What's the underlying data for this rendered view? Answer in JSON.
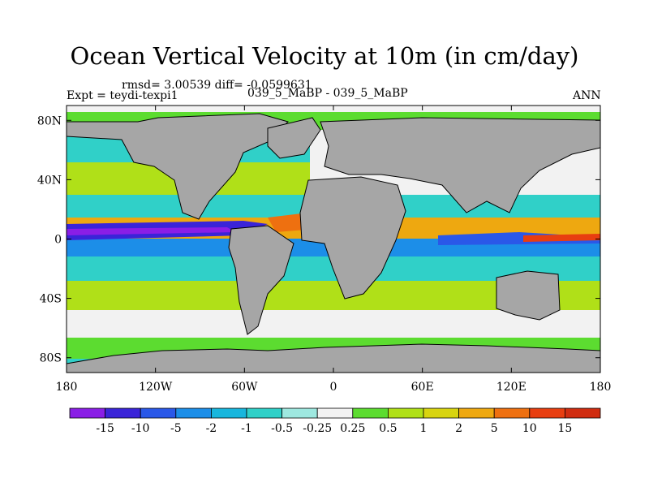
{
  "chart_data": {
    "type": "heatmap",
    "title": "Ocean Vertical Velocity at 10m (in cm/day)",
    "subtitle_left_line1": "rmsd= 3.00539 diff= -0.0599631",
    "subtitle_left_line2": "Expt = teydi-texpi1",
    "subtitle_center": "039_5_MaBP - 039_5_MaBP",
    "subtitle_right": "ANN",
    "xlim": [
      -180,
      180
    ],
    "ylim": [
      -90,
      90
    ],
    "x_ticks": [
      {
        "value": -180,
        "label": "180"
      },
      {
        "value": -120,
        "label": "120W"
      },
      {
        "value": -60,
        "label": "60W"
      },
      {
        "value": 0,
        "label": "0"
      },
      {
        "value": 60,
        "label": "60E"
      },
      {
        "value": 120,
        "label": "120E"
      },
      {
        "value": 180,
        "label": "180"
      }
    ],
    "y_ticks": [
      {
        "value": 80,
        "label": "80N"
      },
      {
        "value": 40,
        "label": "40N"
      },
      {
        "value": 0,
        "label": "0"
      },
      {
        "value": -40,
        "label": "40S"
      },
      {
        "value": -80,
        "label": "80S"
      }
    ],
    "colorbar": {
      "labels": [
        "-15",
        "-10",
        "-5",
        "-2",
        "-1",
        "-0.5",
        "-0.25",
        "0.25",
        "0.5",
        "1",
        "2",
        "5",
        "10",
        "15"
      ],
      "colors": [
        "#8a1ee6",
        "#3a24d8",
        "#2a58e8",
        "#1c8ee8",
        "#18b6dd",
        "#30d0c8",
        "#9ee8e0",
        "#f2f2f2",
        "#5cdc30",
        "#b0e018",
        "#d8d410",
        "#eea810",
        "#ee7010",
        "#e83e10",
        "#d02c10"
      ]
    },
    "land_color": "#a6a6a6"
  }
}
